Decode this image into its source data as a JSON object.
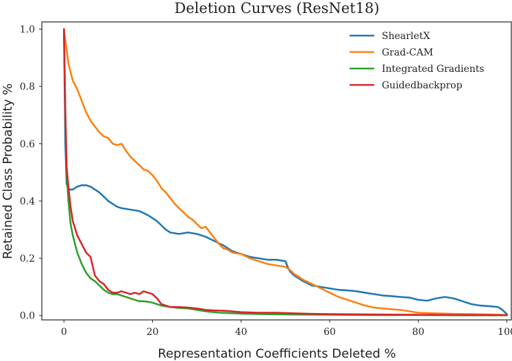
{
  "chart_data": {
    "type": "line",
    "title": "Deletion Curves (ResNet18)",
    "xlabel": "Representation Coefficients Deleted %",
    "ylabel": "Retained Class Probability %",
    "xlim": [
      -5,
      101
    ],
    "ylim": [
      -0.015,
      1.025
    ],
    "x_ticks": [
      0,
      20,
      40,
      60,
      80,
      100
    ],
    "y_ticks": [
      0.0,
      0.2,
      0.4,
      0.6,
      0.8,
      1.0
    ],
    "x_tick_labels": [
      "0",
      "20",
      "40",
      "60",
      "80",
      "100"
    ],
    "y_tick_labels": [
      "0.0",
      "0.2",
      "0.4",
      "0.6",
      "0.8",
      "1.0"
    ],
    "grid": false,
    "legend_position": "top-right",
    "series": [
      {
        "name": "ShearletX",
        "color": "#1f77b4",
        "points": [
          [
            0,
            1.0
          ],
          [
            0.3,
            0.6
          ],
          [
            0.6,
            0.46
          ],
          [
            1,
            0.44
          ],
          [
            2,
            0.44
          ],
          [
            3,
            0.45
          ],
          [
            4,
            0.455
          ],
          [
            5,
            0.455
          ],
          [
            6,
            0.45
          ],
          [
            7,
            0.44
          ],
          [
            8,
            0.43
          ],
          [
            9,
            0.415
          ],
          [
            10,
            0.4
          ],
          [
            11,
            0.39
          ],
          [
            12,
            0.38
          ],
          [
            13,
            0.375
          ],
          [
            15,
            0.37
          ],
          [
            17,
            0.365
          ],
          [
            19,
            0.35
          ],
          [
            20,
            0.34
          ],
          [
            21,
            0.33
          ],
          [
            22,
            0.315
          ],
          [
            23,
            0.3
          ],
          [
            24,
            0.29
          ],
          [
            26,
            0.285
          ],
          [
            28,
            0.29
          ],
          [
            30,
            0.285
          ],
          [
            32,
            0.275
          ],
          [
            34,
            0.26
          ],
          [
            36,
            0.245
          ],
          [
            38,
            0.225
          ],
          [
            40,
            0.215
          ],
          [
            42,
            0.205
          ],
          [
            44,
            0.2
          ],
          [
            46,
            0.195
          ],
          [
            48,
            0.195
          ],
          [
            50,
            0.19
          ],
          [
            50.5,
            0.17
          ],
          [
            51,
            0.155
          ],
          [
            52,
            0.14
          ],
          [
            54,
            0.12
          ],
          [
            56,
            0.105
          ],
          [
            58,
            0.1
          ],
          [
            60,
            0.095
          ],
          [
            62,
            0.09
          ],
          [
            64,
            0.088
          ],
          [
            66,
            0.085
          ],
          [
            68,
            0.08
          ],
          [
            70,
            0.075
          ],
          [
            72,
            0.07
          ],
          [
            74,
            0.068
          ],
          [
            76,
            0.065
          ],
          [
            78,
            0.063
          ],
          [
            80,
            0.055
          ],
          [
            82,
            0.052
          ],
          [
            84,
            0.06
          ],
          [
            86,
            0.065
          ],
          [
            88,
            0.06
          ],
          [
            90,
            0.05
          ],
          [
            92,
            0.04
          ],
          [
            94,
            0.035
          ],
          [
            96,
            0.033
          ],
          [
            98,
            0.03
          ],
          [
            99,
            0.02
          ],
          [
            100,
            0.005
          ]
        ]
      },
      {
        "name": "Grad-CAM",
        "color": "#ff7f0e",
        "points": [
          [
            0,
            1.0
          ],
          [
            0.5,
            0.94
          ],
          [
            1,
            0.88
          ],
          [
            2,
            0.82
          ],
          [
            3,
            0.79
          ],
          [
            4,
            0.75
          ],
          [
            5,
            0.71
          ],
          [
            6,
            0.68
          ],
          [
            7,
            0.66
          ],
          [
            8,
            0.64
          ],
          [
            9,
            0.625
          ],
          [
            10,
            0.62
          ],
          [
            11,
            0.6
          ],
          [
            12,
            0.595
          ],
          [
            13,
            0.6
          ],
          [
            14,
            0.575
          ],
          [
            15,
            0.555
          ],
          [
            16,
            0.54
          ],
          [
            17,
            0.525
          ],
          [
            18,
            0.51
          ],
          [
            19,
            0.505
          ],
          [
            20,
            0.49
          ],
          [
            21,
            0.47
          ],
          [
            22,
            0.445
          ],
          [
            23,
            0.43
          ],
          [
            24,
            0.41
          ],
          [
            25,
            0.39
          ],
          [
            26,
            0.375
          ],
          [
            27,
            0.36
          ],
          [
            28,
            0.345
          ],
          [
            29,
            0.335
          ],
          [
            30,
            0.32
          ],
          [
            31,
            0.305
          ],
          [
            32,
            0.31
          ],
          [
            33,
            0.29
          ],
          [
            34,
            0.27
          ],
          [
            35,
            0.25
          ],
          [
            36,
            0.235
          ],
          [
            37,
            0.23
          ],
          [
            38,
            0.22
          ],
          [
            40,
            0.215
          ],
          [
            42,
            0.2
          ],
          [
            44,
            0.19
          ],
          [
            46,
            0.18
          ],
          [
            48,
            0.175
          ],
          [
            50,
            0.17
          ],
          [
            51,
            0.16
          ],
          [
            52,
            0.145
          ],
          [
            54,
            0.125
          ],
          [
            56,
            0.11
          ],
          [
            58,
            0.095
          ],
          [
            60,
            0.08
          ],
          [
            62,
            0.065
          ],
          [
            64,
            0.055
          ],
          [
            66,
            0.045
          ],
          [
            68,
            0.035
          ],
          [
            70,
            0.028
          ],
          [
            72,
            0.025
          ],
          [
            74,
            0.022
          ],
          [
            76,
            0.02
          ],
          [
            78,
            0.015
          ],
          [
            80,
            0.01
          ],
          [
            84,
            0.008
          ],
          [
            88,
            0.006
          ],
          [
            92,
            0.005
          ],
          [
            96,
            0.004
          ],
          [
            100,
            0.002
          ]
        ]
      },
      {
        "name": "Integrated Gradients",
        "color": "#2ca02c",
        "points": [
          [
            0,
            1.0
          ],
          [
            0.3,
            0.7
          ],
          [
            0.6,
            0.5
          ],
          [
            1,
            0.4
          ],
          [
            1.5,
            0.32
          ],
          [
            2,
            0.28
          ],
          [
            3,
            0.22
          ],
          [
            4,
            0.18
          ],
          [
            5,
            0.15
          ],
          [
            6,
            0.13
          ],
          [
            7,
            0.12
          ],
          [
            8,
            0.105
          ],
          [
            9,
            0.09
          ],
          [
            10,
            0.08
          ],
          [
            11,
            0.075
          ],
          [
            12,
            0.075
          ],
          [
            13,
            0.07
          ],
          [
            14,
            0.065
          ],
          [
            15,
            0.06
          ],
          [
            16,
            0.055
          ],
          [
            17,
            0.05
          ],
          [
            18,
            0.05
          ],
          [
            19,
            0.048
          ],
          [
            20,
            0.045
          ],
          [
            22,
            0.035
          ],
          [
            24,
            0.03
          ],
          [
            26,
            0.027
          ],
          [
            28,
            0.025
          ],
          [
            30,
            0.02
          ],
          [
            32,
            0.015
          ],
          [
            35,
            0.01
          ],
          [
            40,
            0.007
          ],
          [
            45,
            0.005
          ],
          [
            50,
            0.004
          ],
          [
            60,
            0.003
          ],
          [
            70,
            0.002
          ],
          [
            80,
            0.002
          ],
          [
            90,
            0.001
          ],
          [
            100,
            0.001
          ]
        ]
      },
      {
        "name": "Guidedbackprop",
        "color": "#d62728",
        "points": [
          [
            0,
            1.0
          ],
          [
            0.3,
            0.72
          ],
          [
            0.6,
            0.52
          ],
          [
            1,
            0.45
          ],
          [
            1.5,
            0.38
          ],
          [
            2,
            0.33
          ],
          [
            3,
            0.28
          ],
          [
            4,
            0.25
          ],
          [
            5,
            0.22
          ],
          [
            6,
            0.205
          ],
          [
            7,
            0.14
          ],
          [
            8,
            0.12
          ],
          [
            9,
            0.11
          ],
          [
            10,
            0.09
          ],
          [
            11,
            0.08
          ],
          [
            12,
            0.08
          ],
          [
            13,
            0.085
          ],
          [
            14,
            0.08
          ],
          [
            15,
            0.075
          ],
          [
            16,
            0.08
          ],
          [
            17,
            0.075
          ],
          [
            18,
            0.085
          ],
          [
            19,
            0.08
          ],
          [
            20,
            0.075
          ],
          [
            21,
            0.06
          ],
          [
            22,
            0.04
          ],
          [
            24,
            0.03
          ],
          [
            26,
            0.03
          ],
          [
            28,
            0.028
          ],
          [
            30,
            0.025
          ],
          [
            32,
            0.02
          ],
          [
            34,
            0.018
          ],
          [
            36,
            0.017
          ],
          [
            38,
            0.015
          ],
          [
            40,
            0.012
          ],
          [
            44,
            0.01
          ],
          [
            48,
            0.01
          ],
          [
            52,
            0.008
          ],
          [
            56,
            0.006
          ],
          [
            60,
            0.005
          ],
          [
            70,
            0.004
          ],
          [
            80,
            0.003
          ],
          [
            90,
            0.002
          ],
          [
            100,
            0.002
          ]
        ]
      }
    ]
  }
}
